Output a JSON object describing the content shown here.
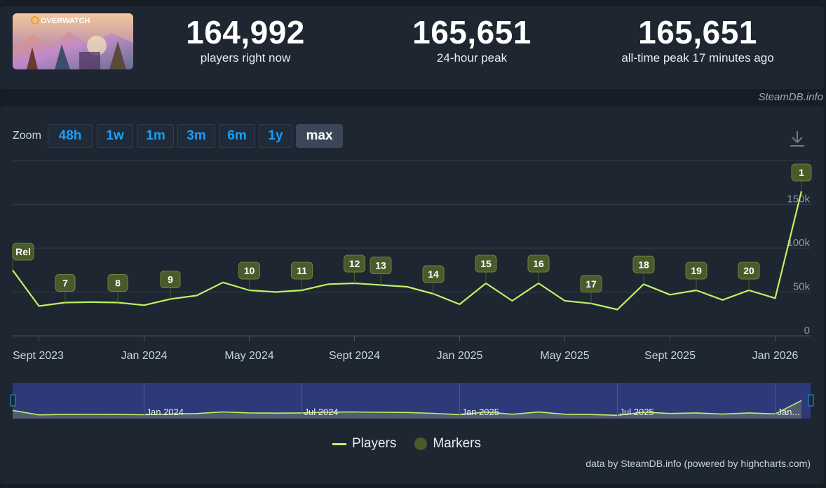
{
  "game": {
    "logo_text": "OVERWATCH"
  },
  "stats": [
    {
      "value": "164,992",
      "label": "players right now"
    },
    {
      "value": "165,651",
      "label": "24-hour peak"
    },
    {
      "value": "165,651",
      "label": "all-time peak 17 minutes ago"
    }
  ],
  "credit": "SteamDB.info",
  "zoom": {
    "label": "Zoom",
    "options": [
      "48h",
      "1w",
      "1m",
      "3m",
      "6m",
      "1y",
      "max"
    ],
    "active": "max"
  },
  "chart_data": {
    "type": "line",
    "x_tick_labels": [
      "Sept 2023",
      "Jan 2024",
      "May 2024",
      "Sept 2024",
      "Jan 2025",
      "May 2025",
      "Sept 2025",
      "Jan 2026"
    ],
    "y_tick_labels": [
      "0",
      "50k",
      "100k",
      "150k"
    ],
    "ylim": [
      0,
      200000
    ],
    "series": [
      {
        "name": "Players",
        "color": "#bef264",
        "points": [
          {
            "x": "2023-08",
            "y": 75000
          },
          {
            "x": "2023-09",
            "y": 34000
          },
          {
            "x": "2023-10",
            "y": 38000
          },
          {
            "x": "2023-11",
            "y": 38500
          },
          {
            "x": "2023-12",
            "y": 38000
          },
          {
            "x": "2024-01",
            "y": 35000
          },
          {
            "x": "2024-02",
            "y": 42000
          },
          {
            "x": "2024-03",
            "y": 46000
          },
          {
            "x": "2024-04",
            "y": 61000
          },
          {
            "x": "2024-05",
            "y": 52000
          },
          {
            "x": "2024-06",
            "y": 50000
          },
          {
            "x": "2024-07",
            "y": 52000
          },
          {
            "x": "2024-08",
            "y": 59000
          },
          {
            "x": "2024-09",
            "y": 60000
          },
          {
            "x": "2024-10",
            "y": 58000
          },
          {
            "x": "2024-11",
            "y": 56000
          },
          {
            "x": "2024-12",
            "y": 48000
          },
          {
            "x": "2025-01",
            "y": 36000
          },
          {
            "x": "2025-02",
            "y": 60000
          },
          {
            "x": "2025-03",
            "y": 40000
          },
          {
            "x": "2025-04",
            "y": 60000
          },
          {
            "x": "2025-05",
            "y": 40000
          },
          {
            "x": "2025-06",
            "y": 37000
          },
          {
            "x": "2025-07",
            "y": 30000
          },
          {
            "x": "2025-08",
            "y": 59000
          },
          {
            "x": "2025-09",
            "y": 47000
          },
          {
            "x": "2025-10",
            "y": 52000
          },
          {
            "x": "2025-11",
            "y": 41000
          },
          {
            "x": "2025-12",
            "y": 52000
          },
          {
            "x": "2026-01",
            "y": 43000
          },
          {
            "x": "2026-02",
            "y": 165000
          }
        ]
      }
    ],
    "markers": [
      {
        "label": "Rel",
        "x": "2023-08"
      },
      {
        "label": "7",
        "x": "2023-10"
      },
      {
        "label": "8",
        "x": "2023-12"
      },
      {
        "label": "9",
        "x": "2024-02"
      },
      {
        "label": "10",
        "x": "2024-05"
      },
      {
        "label": "11",
        "x": "2024-07"
      },
      {
        "label": "12",
        "x": "2024-09"
      },
      {
        "label": "13",
        "x": "2024-10"
      },
      {
        "label": "14",
        "x": "2024-12"
      },
      {
        "label": "15",
        "x": "2025-02"
      },
      {
        "label": "16",
        "x": "2025-04"
      },
      {
        "label": "17",
        "x": "2025-06"
      },
      {
        "label": "18",
        "x": "2025-08"
      },
      {
        "label": "19",
        "x": "2025-10"
      },
      {
        "label": "20",
        "x": "2025-12"
      },
      {
        "label": "1",
        "x": "2026-02"
      }
    ],
    "navigator_labels": [
      "Jan 2024",
      "Jul 2024",
      "Jan 2025",
      "Jul 2025",
      "Jan..."
    ],
    "legend": [
      "Players",
      "Markers"
    ],
    "grid": true
  },
  "footer": "data by SteamDB.info (powered by highcharts.com)"
}
